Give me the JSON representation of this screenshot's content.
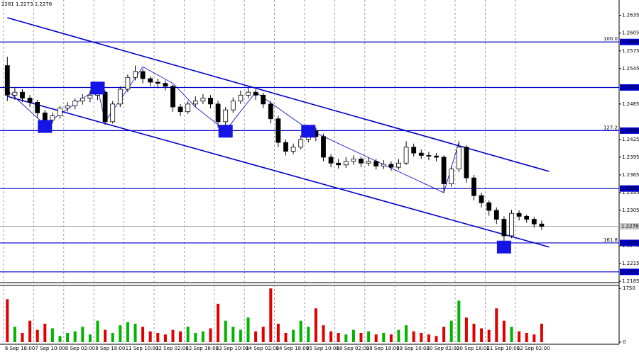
{
  "chart_data": {
    "type": "candlestick",
    "header": "2281 1.2273 1.2278",
    "categories": [
      "6 Sep 18:00",
      null,
      null,
      null,
      "7 Sep 10:00",
      null,
      null,
      null,
      "8 Sep 02:00",
      null,
      null,
      null,
      "8 Sep 18:00",
      null,
      null,
      null,
      "11 Sep 10:00",
      null,
      null,
      null,
      "12 Sep 02:00",
      null,
      null,
      null,
      "12 Sep 18:00",
      null,
      null,
      null,
      "13 Sep 10:00",
      null,
      null,
      null,
      "14 Sep 02:00",
      null,
      null,
      null,
      "14 Sep 18:00",
      null,
      null,
      null,
      "15 Sep 10:00",
      null,
      null,
      null,
      "18 Sep 02:00",
      null,
      null,
      null,
      "18 Sep 18:00",
      null,
      null,
      null,
      "19 Sep 10:00",
      null,
      null,
      null,
      "20 Sep 02:00",
      null,
      null,
      null,
      "20 Sep 18:00",
      null,
      null,
      null,
      "21 Sep 10:00",
      null,
      null,
      null,
      "22 Sep 02:00",
      null,
      null,
      null
    ],
    "open": [
      1.255,
      1.25,
      1.2505,
      1.2495,
      1.2488,
      1.247,
      1.2458,
      1.2465,
      1.2478,
      1.2482,
      1.249,
      1.2495,
      1.25,
      1.2505,
      1.2455,
      1.2485,
      1.251,
      1.253,
      1.254,
      1.2528,
      1.2522,
      1.252,
      1.2515,
      1.248,
      1.2472,
      1.2485,
      1.249,
      1.2495,
      1.2485,
      1.2455,
      1.2475,
      1.249,
      1.25,
      1.2505,
      1.25,
      1.2485,
      1.246,
      1.242,
      1.2405,
      1.2412,
      1.2425,
      1.244,
      1.243,
      1.2395,
      1.2385,
      1.2382,
      1.2388,
      1.2392,
      1.2385,
      1.2388,
      1.238,
      1.2383,
      1.2378,
      1.2385,
      1.2412,
      1.2402,
      1.2398,
      1.2397,
      1.2395,
      1.235,
      1.2375,
      1.2412,
      1.236,
      1.233,
      1.2318,
      1.2305,
      1.229,
      1.2262,
      1.23,
      1.2295,
      1.229,
      1.2282
    ],
    "high": [
      1.2565,
      1.2512,
      1.251,
      1.25,
      1.2492,
      1.2475,
      1.247,
      1.2482,
      1.2488,
      1.2495,
      1.2502,
      1.2508,
      1.2515,
      1.2508,
      1.249,
      1.2515,
      1.2535,
      1.255,
      1.2545,
      1.2532,
      1.2528,
      1.2525,
      1.2518,
      1.2485,
      1.249,
      1.2498,
      1.2502,
      1.25,
      1.249,
      1.248,
      1.2496,
      1.2508,
      1.2512,
      1.251,
      1.2504,
      1.249,
      1.2465,
      1.2425,
      1.2418,
      1.2432,
      1.2448,
      1.2445,
      1.2435,
      1.24,
      1.2392,
      1.2395,
      1.2398,
      1.2396,
      1.2394,
      1.2392,
      1.239,
      1.2388,
      1.2392,
      1.2422,
      1.2418,
      1.2408,
      1.2404,
      1.2402,
      1.2398,
      1.238,
      1.2422,
      1.2415,
      1.2365,
      1.2335,
      1.2322,
      1.231,
      1.2295,
      1.2306,
      1.2305,
      1.2298,
      1.2294,
      1.2288
    ],
    "low": [
      1.249,
      1.2492,
      1.2488,
      1.248,
      1.2462,
      1.245,
      1.2452,
      1.246,
      1.2472,
      1.2476,
      1.2484,
      1.2488,
      1.2492,
      1.245,
      1.2452,
      1.248,
      1.2505,
      1.2525,
      1.252,
      1.2515,
      1.2512,
      1.2508,
      1.2472,
      1.2465,
      1.2468,
      1.248,
      1.2485,
      1.2478,
      1.2445,
      1.2448,
      1.247,
      1.2485,
      1.2495,
      1.2492,
      1.2478,
      1.2452,
      1.2412,
      1.2398,
      1.24,
      1.2408,
      1.242,
      1.2422,
      1.2388,
      1.2378,
      1.2376,
      1.2377,
      1.2382,
      1.2378,
      1.238,
      1.2374,
      1.2375,
      1.2372,
      1.2374,
      1.2382,
      1.2396,
      1.2392,
      1.239,
      1.2388,
      1.2335,
      1.2345,
      1.237,
      1.2352,
      1.2322,
      1.231,
      1.2296,
      1.2282,
      1.225,
      1.2258,
      1.2288,
      1.2284,
      1.2276,
      1.2272
    ],
    "close": [
      1.25,
      1.2505,
      1.2495,
      1.2488,
      1.247,
      1.2458,
      1.2465,
      1.2478,
      1.2482,
      1.249,
      1.2495,
      1.25,
      1.2505,
      1.2455,
      1.2485,
      1.251,
      1.253,
      1.254,
      1.2528,
      1.2522,
      1.252,
      1.2515,
      1.248,
      1.2472,
      1.2485,
      1.249,
      1.2495,
      1.2485,
      1.2455,
      1.2475,
      1.249,
      1.25,
      1.2505,
      1.25,
      1.2485,
      1.246,
      1.242,
      1.2405,
      1.2412,
      1.2425,
      1.244,
      1.243,
      1.2395,
      1.2385,
      1.2382,
      1.2388,
      1.2392,
      1.2385,
      1.2388,
      1.238,
      1.2383,
      1.2378,
      1.2385,
      1.2412,
      1.2402,
      1.2398,
      1.2397,
      1.2395,
      1.235,
      1.2375,
      1.2412,
      1.236,
      1.233,
      1.2318,
      1.2305,
      1.229,
      1.2262,
      1.23,
      1.2295,
      1.229,
      1.2282,
      1.2278
    ],
    "up_color": "#ffffff",
    "down_color": "#000000",
    "ylim": [
      1.2184,
      1.2661
    ],
    "yticks": [
      1.2635,
      1.2605,
      1.2575,
      1.2545,
      1.2485,
      1.2425,
      1.2395,
      1.2365,
      1.2335,
      1.2305,
      1.2245,
      1.2215,
      1.2185
    ],
    "grid": true,
    "levels": [
      {
        "value": 1.259,
        "label": "1.2590",
        "fib": "100.0"
      },
      {
        "value": 1.2513,
        "label": "1.2513"
      },
      {
        "value": 1.244,
        "label": "1.2440",
        "fib": "127.2"
      },
      {
        "value": 1.2342,
        "label": "1.2342"
      },
      {
        "value": 1.225,
        "label": "1.2250",
        "fib": "161.8"
      },
      {
        "value": 1.2201,
        "label": "1.2201"
      }
    ],
    "level_color": "#0000cc",
    "last_price": {
      "value": 1.2278,
      "label": "1.2278"
    },
    "channel": {
      "color": "#0000cc",
      "indices": [
        0,
        72
      ],
      "upper": [
        1.2631,
        1.2371
      ],
      "lower": [
        1.2498,
        1.2243
      ]
    },
    "zigzag": {
      "color": "#0000cc",
      "indices": [
        0,
        5,
        12,
        13,
        18,
        22,
        25,
        29,
        33,
        40,
        58,
        60
      ],
      "prices": [
        1.2508,
        1.245,
        1.2512,
        1.2455,
        1.2548,
        1.252,
        1.248,
        1.244,
        1.2505,
        1.2442,
        1.2335,
        1.242
      ]
    },
    "markers": {
      "color": "#1414e6",
      "indices": [
        5,
        12,
        29,
        40,
        66
      ],
      "prices": [
        1.2447,
        1.2512,
        1.2439,
        1.2439,
        1.2243
      ]
    },
    "volume": {
      "values": [
        1400,
        500,
        300,
        700,
        400,
        600,
        450,
        200,
        300,
        350,
        500,
        250,
        700,
        400,
        300,
        550,
        650,
        600,
        500,
        350,
        300,
        250,
        400,
        350,
        500,
        300,
        350,
        450,
        1250,
        700,
        500,
        400,
        800,
        350,
        500,
        1750,
        600,
        300,
        400,
        700,
        500,
        1100,
        550,
        350,
        300,
        250,
        400,
        300,
        350,
        250,
        300,
        250,
        400,
        550,
        350,
        300,
        250,
        200,
        500,
        700,
        1350,
        800,
        600,
        450,
        400,
        1100,
        700,
        500,
        350,
        300,
        250,
        600
      ],
      "up_color": "#00b400",
      "down_color": "#e00000",
      "ylim": [
        0,
        1800
      ],
      "yticks": [
        1750,
        0
      ]
    }
  }
}
